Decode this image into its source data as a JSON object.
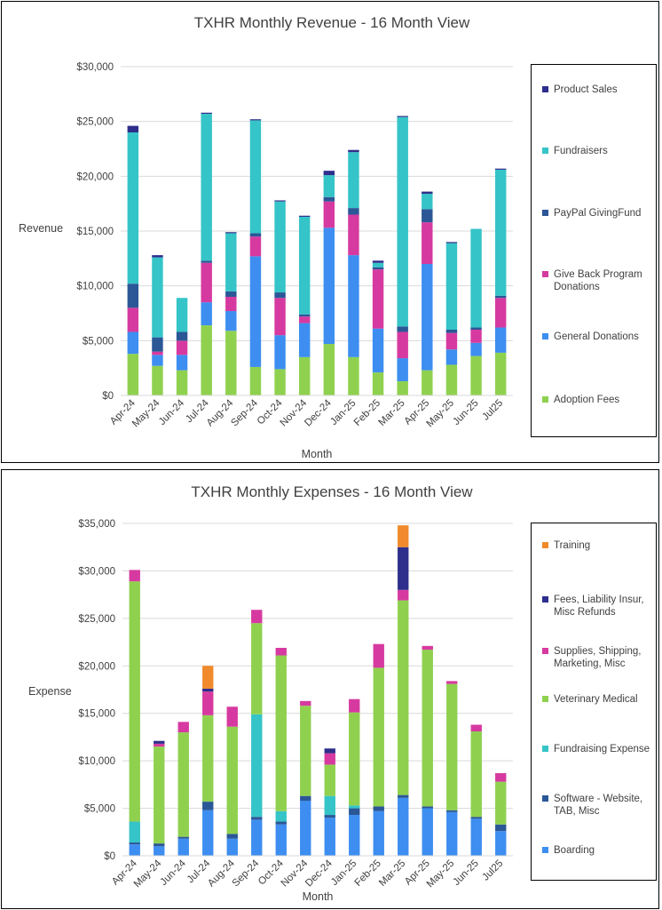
{
  "chart_data": [
    {
      "type": "bar",
      "stacked": true,
      "title": "TXHR Monthly Revenue - 16 Month View",
      "xlabel": "Month",
      "ylabel": "Revenue",
      "ylim": [
        0,
        30000
      ],
      "yticks": [
        0,
        5000,
        10000,
        15000,
        20000,
        25000,
        30000
      ],
      "ytick_labels": [
        "$0",
        "$5,000",
        "$10,000",
        "$15,000",
        "$20,000",
        "$25,000",
        "$30,000"
      ],
      "categories": [
        "Apr-24",
        "May-24",
        "Jun-24",
        "Jul-24",
        "Aug-24",
        "Sep-24",
        "Oct-24",
        "Nov-24",
        "Dec-24",
        "Jan-25",
        "Feb-25",
        "Mar-25",
        "Apr-25",
        "May-25",
        "Jun-25",
        "Jul25"
      ],
      "grid": true,
      "legend_position": "right",
      "series": [
        {
          "name": "Adoption Fees",
          "color": "#8fd14f",
          "values": [
            3800,
            2700,
            2300,
            6400,
            5900,
            2600,
            2400,
            3500,
            4700,
            3500,
            2100,
            1300,
            2300,
            2800,
            3600,
            3900
          ]
        },
        {
          "name": "General Donations",
          "color": "#3d8ef0",
          "values": [
            2000,
            1000,
            1400,
            2100,
            1800,
            10100,
            3100,
            3100,
            10600,
            9300,
            4000,
            2100,
            9700,
            1400,
            1200,
            2300
          ]
        },
        {
          "name": "Give Back Program\nDonations",
          "color": "#d63aa0",
          "values": [
            2200,
            300,
            1300,
            3600,
            1300,
            1800,
            3400,
            600,
            2400,
            3700,
            5400,
            2400,
            3800,
            1500,
            1200,
            2700
          ]
        },
        {
          "name": "PayPal GivingFund",
          "color": "#2b5797",
          "values": [
            2200,
            1300,
            800,
            200,
            500,
            300,
            500,
            200,
            400,
            600,
            200,
            500,
            1200,
            300,
            200,
            200
          ]
        },
        {
          "name": "Fundraisers",
          "color": "#35c4c8",
          "values": [
            13800,
            7300,
            3100,
            13400,
            5300,
            10300,
            8300,
            8900,
            2000,
            5100,
            400,
            19100,
            1400,
            7900,
            9000,
            11500
          ]
        },
        {
          "name": "Product Sales",
          "color": "#2e2e8c",
          "values": [
            600,
            200,
            0,
            100,
            100,
            100,
            100,
            100,
            400,
            200,
            200,
            100,
            200,
            100,
            0,
            100
          ]
        }
      ]
    },
    {
      "type": "bar",
      "stacked": true,
      "title": "TXHR Monthly Expenses - 16 Month View",
      "xlabel": "Month",
      "ylabel": "Expense",
      "ylim": [
        0,
        35000
      ],
      "yticks": [
        0,
        5000,
        10000,
        15000,
        20000,
        25000,
        30000,
        35000
      ],
      "ytick_labels": [
        "$0",
        "$5,000",
        "$10,000",
        "$15,000",
        "$20,000",
        "$25,000",
        "$30,000",
        "$35,000"
      ],
      "categories": [
        "Apr-24",
        "May-24",
        "Jun-24",
        "Jul-24",
        "Aug-24",
        "Sep-24",
        "Oct-24",
        "Nov-24",
        "Dec-24",
        "Jan-25",
        "Feb-25",
        "Mar-25",
        "Apr-25",
        "May-25",
        "Jun-25",
        "Jul25"
      ],
      "grid": true,
      "legend_position": "right",
      "series": [
        {
          "name": "Boarding",
          "color": "#3d8ef0",
          "values": [
            1200,
            1000,
            1800,
            4800,
            1800,
            3800,
            3300,
            5800,
            4000,
            4300,
            4700,
            6100,
            5000,
            4600,
            3900,
            2600
          ]
        },
        {
          "name": "Software - Website,\nTAB, Misc",
          "color": "#2b5797",
          "values": [
            200,
            300,
            200,
            900,
            500,
            300,
            300,
            500,
            300,
            700,
            500,
            300,
            200,
            200,
            200,
            700
          ]
        },
        {
          "name": "Fundraising Expense",
          "color": "#35c4c8",
          "values": [
            2200,
            0,
            0,
            0,
            0,
            10800,
            1100,
            0,
            2000,
            300,
            0,
            0,
            0,
            0,
            0,
            0
          ]
        },
        {
          "name": "Veterinary Medical",
          "color": "#8fd14f",
          "values": [
            25300,
            10200,
            11000,
            9100,
            11300,
            9600,
            16400,
            9500,
            3300,
            9800,
            14600,
            20500,
            16500,
            13300,
            9000,
            4500
          ]
        },
        {
          "name": "Supplies, Shipping,\nMarketing, Misc",
          "color": "#d63aa0",
          "values": [
            1200,
            300,
            1100,
            2500,
            2100,
            1400,
            800,
            500,
            1200,
            1400,
            2500,
            1100,
            400,
            300,
            700,
            900
          ]
        },
        {
          "name": "Fees, Liability Insur,\nMisc Refunds",
          "color": "#2e2e8c",
          "values": [
            0,
            300,
            0,
            300,
            0,
            0,
            0,
            0,
            500,
            0,
            0,
            4500,
            0,
            0,
            0,
            0
          ]
        },
        {
          "name": "Training",
          "color": "#f08a2c",
          "values": [
            0,
            0,
            0,
            2400,
            0,
            0,
            0,
            0,
            0,
            0,
            0,
            2300,
            0,
            0,
            0,
            0
          ]
        }
      ]
    }
  ]
}
